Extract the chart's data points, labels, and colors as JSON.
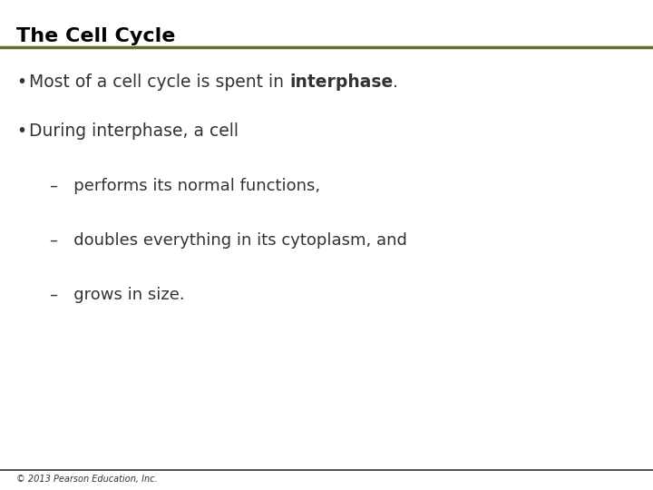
{
  "title": "The Cell Cycle",
  "title_fontsize": 16,
  "title_color": "#000000",
  "bg_color": "#ffffff",
  "line_color": "#6b6b2a",
  "footer_text": "© 2013 Pearson Education, Inc.",
  "footer_fontsize": 7,
  "footer_color": "#333333",
  "footer_line_color": "#333333",
  "text_color": "#333333",
  "bullet1_normal": "Most of a cell cycle is spent in ",
  "bullet1_bold": "interphase",
  "bullet1_end": ".",
  "bullet2_text": "During interphase, a cell",
  "sub1_text": "–   performs its normal functions,",
  "sub2_text": "–   doubles everything in its cytoplasm, and",
  "sub3_text": "–   grows in size.",
  "main_fontsize": 13.5,
  "sub_fontsize": 13.0
}
